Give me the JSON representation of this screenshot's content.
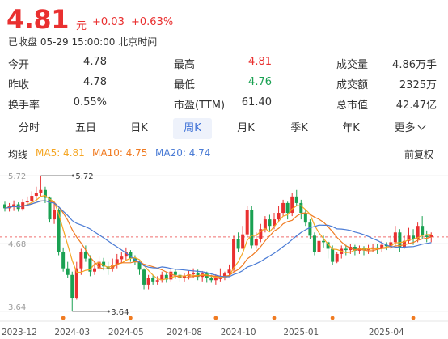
{
  "quote": {
    "price": "4.81",
    "unit": "元",
    "change": "+0.03",
    "change_pct": "+0.63%",
    "status": "已收盘 05-29 15:00:00 北京时间"
  },
  "stats": [
    {
      "label": "今开",
      "value": "4.78",
      "tone": "neutral"
    },
    {
      "label": "最高",
      "value": "4.81",
      "tone": "up"
    },
    {
      "label": "成交量",
      "value": "4.86万手",
      "tone": "neutral"
    },
    {
      "label": "昨收",
      "value": "4.78",
      "tone": "neutral"
    },
    {
      "label": "最低",
      "value": "4.76",
      "tone": "down"
    },
    {
      "label": "成交额",
      "value": "2325万",
      "tone": "neutral"
    },
    {
      "label": "换手率",
      "value": "0.55%",
      "tone": "neutral"
    },
    {
      "label": "市盈(TTM)",
      "value": "61.40",
      "tone": "neutral"
    },
    {
      "label": "总市值",
      "value": "42.47亿",
      "tone": "neutral"
    }
  ],
  "tabs": [
    {
      "label": "分时",
      "active": false
    },
    {
      "label": "五日",
      "active": false
    },
    {
      "label": "日K",
      "active": false
    },
    {
      "label": "周K",
      "active": true
    },
    {
      "label": "月K",
      "active": false
    },
    {
      "label": "季K",
      "active": false
    },
    {
      "label": "年K",
      "active": false
    },
    {
      "label": "更多",
      "active": false
    }
  ],
  "indicators": {
    "ma_title": "均线",
    "ma5": "MA5: 4.81",
    "ma10": "MA10: 4.75",
    "ma20": "MA20: 4.74",
    "adjust": "前复权"
  },
  "colors": {
    "up": "#e93030",
    "down": "#1aa152",
    "ma5": "#f5a623",
    "ma10": "#f07b22",
    "ma20": "#4a7bd5",
    "active_tab": "#3b6fd6"
  },
  "chart_data": {
    "type": "candlestick",
    "y_axis_labels": [
      "5.72",
      "4.68",
      "3.64"
    ],
    "ylim": [
      3.64,
      5.72
    ],
    "x_labels": [
      "2023-12",
      "2024-03",
      "2024-05",
      "2024-08",
      "2024-10",
      "2025-01",
      "2025-04"
    ],
    "annotations": [
      {
        "text": "5.72",
        "type": "max"
      },
      {
        "text": "3.64",
        "type": "min"
      }
    ],
    "reference_line": 4.78,
    "candles": [
      [
        5.28,
        5.22,
        5.32,
        5.17
      ],
      [
        5.22,
        5.25,
        5.3,
        5.17
      ],
      [
        5.25,
        5.28,
        5.34,
        5.18
      ],
      [
        5.28,
        5.21,
        5.31,
        5.17
      ],
      [
        5.21,
        5.31,
        5.36,
        5.18
      ],
      [
        5.31,
        5.33,
        5.4,
        5.26
      ],
      [
        5.33,
        5.41,
        5.48,
        5.3
      ],
      [
        5.41,
        5.46,
        5.55,
        5.35
      ],
      [
        5.46,
        5.5,
        5.72,
        5.4
      ],
      [
        5.5,
        5.38,
        5.55,
        5.3
      ],
      [
        5.38,
        5.05,
        5.4,
        5.0
      ],
      [
        5.05,
        5.2,
        5.3,
        4.98
      ],
      [
        5.2,
        4.55,
        5.22,
        4.5
      ],
      [
        4.55,
        4.3,
        4.62,
        4.25
      ],
      [
        4.3,
        4.2,
        4.4,
        4.15
      ],
      [
        4.2,
        3.85,
        4.25,
        3.64
      ],
      [
        3.85,
        4.3,
        4.4,
        3.82
      ],
      [
        4.3,
        4.55,
        4.6,
        4.2
      ],
      [
        4.55,
        4.45,
        4.65,
        4.4
      ],
      [
        4.45,
        4.25,
        4.5,
        4.18
      ],
      [
        4.25,
        4.3,
        4.4,
        4.2
      ],
      [
        4.3,
        4.4,
        4.48,
        4.25
      ],
      [
        4.4,
        4.33,
        4.46,
        4.27
      ],
      [
        4.33,
        4.3,
        4.4,
        4.2
      ],
      [
        4.3,
        4.35,
        4.45,
        4.25
      ],
      [
        4.35,
        4.44,
        4.52,
        4.3
      ],
      [
        4.44,
        4.48,
        4.55,
        4.38
      ],
      [
        4.48,
        4.55,
        4.62,
        4.42
      ],
      [
        4.55,
        4.45,
        4.58,
        4.4
      ],
      [
        4.45,
        4.4,
        4.5,
        4.35
      ],
      [
        4.4,
        4.28,
        4.42,
        4.2
      ],
      [
        4.28,
        4.05,
        4.3,
        3.98
      ],
      [
        4.05,
        4.15,
        4.2,
        3.98
      ],
      [
        4.15,
        4.1,
        4.2,
        4.05
      ],
      [
        4.1,
        4.12,
        4.18,
        4.05
      ],
      [
        4.12,
        4.2,
        4.25,
        4.08
      ],
      [
        4.2,
        4.13,
        4.24,
        4.08
      ],
      [
        4.13,
        4.25,
        4.3,
        4.1
      ],
      [
        4.25,
        4.2,
        4.28,
        4.14
      ],
      [
        4.2,
        4.15,
        4.24,
        4.1
      ],
      [
        4.15,
        4.18,
        4.22,
        4.1
      ],
      [
        4.18,
        4.21,
        4.26,
        4.13
      ],
      [
        4.21,
        4.23,
        4.3,
        4.16
      ],
      [
        4.23,
        4.17,
        4.28,
        4.12
      ],
      [
        4.17,
        4.22,
        4.26,
        4.1
      ],
      [
        4.22,
        4.16,
        4.25,
        4.08
      ],
      [
        4.16,
        4.12,
        4.2,
        4.08
      ],
      [
        4.12,
        4.15,
        4.21,
        4.05
      ],
      [
        4.15,
        4.15,
        4.3,
        4.1
      ],
      [
        4.15,
        4.22,
        4.25,
        4.12
      ],
      [
        4.22,
        4.28,
        4.36,
        4.18
      ],
      [
        4.28,
        4.75,
        4.8,
        4.25
      ],
      [
        4.75,
        4.6,
        4.85,
        4.55
      ],
      [
        4.6,
        4.82,
        4.95,
        4.6
      ],
      [
        4.82,
        5.2,
        5.25,
        4.78
      ],
      [
        5.2,
        4.65,
        5.25,
        4.6
      ],
      [
        4.65,
        4.75,
        4.85,
        4.6
      ],
      [
        4.75,
        4.9,
        4.98,
        4.7
      ],
      [
        4.9,
        5.05,
        5.1,
        4.85
      ],
      [
        5.05,
        4.95,
        5.12,
        4.88
      ],
      [
        4.95,
        5.05,
        5.15,
        4.9
      ],
      [
        5.05,
        5.15,
        5.25,
        5.0
      ],
      [
        5.15,
        5.3,
        5.35,
        5.1
      ],
      [
        5.3,
        5.15,
        5.32,
        5.05
      ],
      [
        5.15,
        5.4,
        5.45,
        5.1
      ],
      [
        5.4,
        5.3,
        5.5,
        5.25
      ],
      [
        5.3,
        5.15,
        5.35,
        5.05
      ],
      [
        5.15,
        5.0,
        5.2,
        4.95
      ],
      [
        5.0,
        4.8,
        5.05,
        4.75
      ],
      [
        4.8,
        4.55,
        4.85,
        4.5
      ],
      [
        4.55,
        4.72,
        4.75,
        4.5
      ],
      [
        4.72,
        4.7,
        4.8,
        4.62
      ],
      [
        4.7,
        4.6,
        4.72,
        4.45
      ],
      [
        4.6,
        4.4,
        4.65,
        4.35
      ],
      [
        4.4,
        4.52,
        4.55,
        4.38
      ],
      [
        4.52,
        4.6,
        4.65,
        4.45
      ],
      [
        4.6,
        4.58,
        4.66,
        4.5
      ],
      [
        4.58,
        4.63,
        4.68,
        4.52
      ],
      [
        4.63,
        4.57,
        4.66,
        4.5
      ],
      [
        4.57,
        4.61,
        4.65,
        4.52
      ],
      [
        4.61,
        4.58,
        4.64,
        4.5
      ],
      [
        4.58,
        4.6,
        4.66,
        4.52
      ],
      [
        4.6,
        4.62,
        4.68,
        4.55
      ],
      [
        4.62,
        4.6,
        4.68,
        4.52
      ],
      [
        4.6,
        4.66,
        4.72,
        4.55
      ],
      [
        4.66,
        4.64,
        4.7,
        4.58
      ],
      [
        4.64,
        4.7,
        4.8,
        4.6
      ],
      [
        4.7,
        4.85,
        4.95,
        4.65
      ],
      [
        4.85,
        4.62,
        4.9,
        4.55
      ],
      [
        4.62,
        4.72,
        4.8,
        4.6
      ],
      [
        4.72,
        4.8,
        4.92,
        4.68
      ],
      [
        4.8,
        4.75,
        4.9,
        4.66
      ],
      [
        4.75,
        4.95,
        5.0,
        4.7
      ],
      [
        4.95,
        4.8,
        5.1,
        4.75
      ],
      [
        4.8,
        4.78,
        4.88,
        4.7
      ],
      [
        4.78,
        4.81,
        4.85,
        4.7
      ]
    ]
  }
}
